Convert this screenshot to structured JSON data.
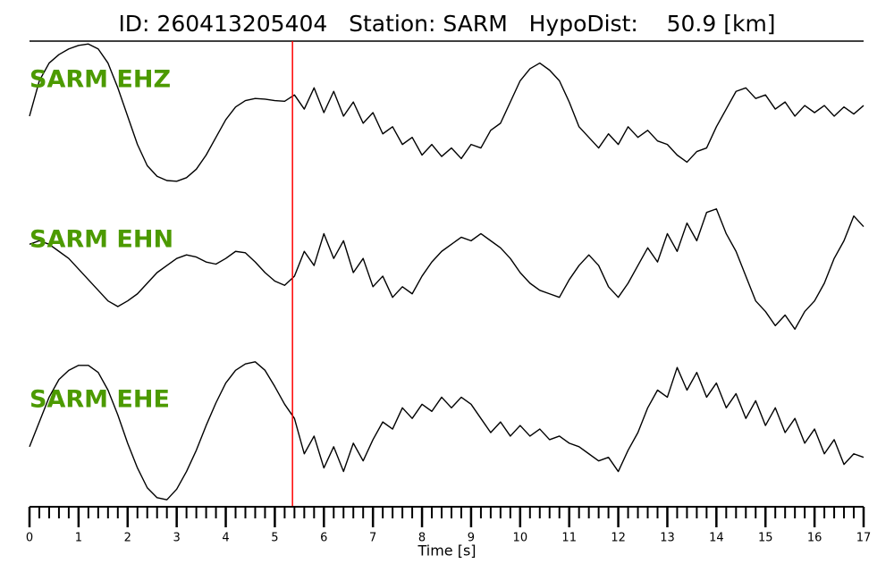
{
  "chart_data": {
    "type": "line",
    "title": "ID: 260413205404   Station: SARM   HypoDist:    50.9 [km]",
    "xlabel": "Time [s]",
    "xlim": [
      0,
      17
    ],
    "xticks": [
      0,
      1,
      2,
      3,
      4,
      5,
      6,
      7,
      8,
      9,
      10,
      11,
      12,
      13,
      14,
      15,
      16,
      17
    ],
    "xminor_step": 0.2,
    "ylim": [
      -1.2,
      1.2
    ],
    "name_color": "#4c9a00",
    "markers": [
      {
        "x": 5.36,
        "color": "#ff0000"
      }
    ],
    "x": [
      0,
      0.2,
      0.4,
      0.6,
      0.8,
      1,
      1.2,
      1.4,
      1.6,
      1.8,
      2,
      2.2,
      2.4,
      2.6,
      2.8,
      3,
      3.2,
      3.4,
      3.6,
      3.8,
      4,
      4.2,
      4.4,
      4.6,
      4.8,
      5,
      5.2,
      5.4,
      5.6,
      5.8,
      6,
      6.2,
      6.4,
      6.6,
      6.8,
      7,
      7.2,
      7.4,
      7.6,
      7.8,
      8,
      8.2,
      8.4,
      8.6,
      8.8,
      9,
      9.2,
      9.4,
      9.6,
      9.8,
      10,
      10.2,
      10.4,
      10.6,
      10.8,
      11,
      11.2,
      11.4,
      11.6,
      11.8,
      12,
      12.2,
      12.4,
      12.6,
      12.8,
      13,
      13.2,
      13.4,
      13.6,
      13.8,
      14,
      14.2,
      14.4,
      14.6,
      14.8,
      15,
      15.2,
      15.4,
      15.6,
      15.8,
      16,
      16.2,
      16.4,
      16.6,
      16.8,
      17
    ],
    "series": [
      {
        "name": "SARM EHZ",
        "color": "#000000",
        "values": [
          -0.05,
          0.45,
          0.7,
          0.82,
          0.9,
          0.95,
          0.97,
          0.9,
          0.7,
          0.35,
          -0.05,
          -0.45,
          -0.75,
          -0.9,
          -0.96,
          -0.97,
          -0.92,
          -0.8,
          -0.6,
          -0.35,
          -0.1,
          0.08,
          0.17,
          0.2,
          0.19,
          0.17,
          0.16,
          0.25,
          0.05,
          0.35,
          0.0,
          0.3,
          -0.05,
          0.15,
          -0.15,
          0.0,
          -0.3,
          -0.2,
          -0.45,
          -0.35,
          -0.6,
          -0.45,
          -0.62,
          -0.5,
          -0.65,
          -0.45,
          -0.5,
          -0.25,
          -0.15,
          0.15,
          0.45,
          0.62,
          0.7,
          0.6,
          0.45,
          0.15,
          -0.2,
          -0.35,
          -0.5,
          -0.3,
          -0.45,
          -0.2,
          -0.35,
          -0.25,
          -0.4,
          -0.45,
          -0.6,
          -0.7,
          -0.55,
          -0.5,
          -0.2,
          0.05,
          0.3,
          0.35,
          0.2,
          0.25,
          0.05,
          0.15,
          -0.05,
          0.1,
          0.0,
          0.1,
          -0.05,
          0.08,
          -0.02,
          0.1
        ]
      },
      {
        "name": "SARM EHN",
        "color": "#000000",
        "values": [
          0.4,
          0.45,
          0.4,
          0.3,
          0.2,
          0.05,
          -0.1,
          -0.25,
          -0.4,
          -0.48,
          -0.4,
          -0.3,
          -0.15,
          0.0,
          0.1,
          0.2,
          0.25,
          0.22,
          0.15,
          0.12,
          0.2,
          0.3,
          0.28,
          0.15,
          0.0,
          -0.12,
          -0.18,
          -0.05,
          0.3,
          0.1,
          0.55,
          0.2,
          0.45,
          0.0,
          0.2,
          -0.2,
          -0.05,
          -0.35,
          -0.2,
          -0.3,
          -0.05,
          0.15,
          0.3,
          0.4,
          0.5,
          0.45,
          0.55,
          0.45,
          0.35,
          0.2,
          0.0,
          -0.15,
          -0.25,
          -0.3,
          -0.35,
          -0.1,
          0.1,
          0.25,
          0.1,
          -0.2,
          -0.35,
          -0.15,
          0.1,
          0.35,
          0.15,
          0.55,
          0.3,
          0.7,
          0.45,
          0.85,
          0.9,
          0.55,
          0.3,
          -0.05,
          -0.4,
          -0.55,
          -0.75,
          -0.6,
          -0.8,
          -0.55,
          -0.4,
          -0.15,
          0.2,
          0.45,
          0.8,
          0.65
        ]
      },
      {
        "name": "SARM EHE",
        "color": "#000000",
        "values": [
          -0.2,
          0.15,
          0.5,
          0.75,
          0.88,
          0.95,
          0.95,
          0.85,
          0.6,
          0.25,
          -0.15,
          -0.5,
          -0.78,
          -0.92,
          -0.95,
          -0.8,
          -0.55,
          -0.25,
          0.1,
          0.42,
          0.7,
          0.88,
          0.97,
          1.0,
          0.88,
          0.65,
          0.4,
          0.2,
          -0.3,
          -0.05,
          -0.5,
          -0.2,
          -0.55,
          -0.15,
          -0.4,
          -0.1,
          0.15,
          0.05,
          0.35,
          0.2,
          0.4,
          0.3,
          0.5,
          0.35,
          0.5,
          0.4,
          0.2,
          0.0,
          0.15,
          -0.05,
          0.1,
          -0.05,
          0.05,
          -0.1,
          -0.05,
          -0.15,
          -0.2,
          -0.3,
          -0.4,
          -0.35,
          -0.55,
          -0.25,
          0.0,
          0.35,
          0.6,
          0.5,
          0.92,
          0.6,
          0.85,
          0.5,
          0.7,
          0.35,
          0.55,
          0.2,
          0.45,
          0.1,
          0.35,
          0.0,
          0.2,
          -0.15,
          0.05,
          -0.3,
          -0.1,
          -0.45,
          -0.3,
          -0.35
        ]
      }
    ]
  }
}
